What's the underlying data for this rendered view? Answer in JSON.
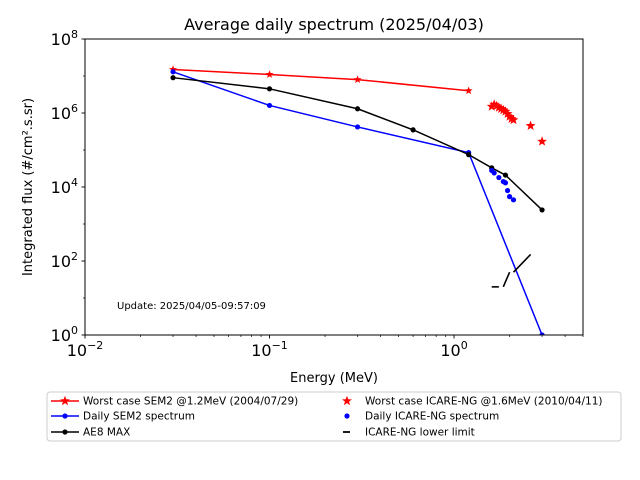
{
  "chart_data": {
    "type": "line",
    "title": "Average daily spectrum (2025/04/03)",
    "xlabel": "Energy (MeV)",
    "ylabel": "Integrated flux (#/cm².s.sr)",
    "xscale": "log",
    "yscale": "log",
    "xlim": [
      0.01,
      5
    ],
    "ylim": [
      1,
      100000000
    ],
    "grid": false,
    "legend_position": "bottom",
    "annotation": "Update: 2025/04/05-09:57:09",
    "x_tick_labels": [
      {
        "value": 0.01,
        "base": "10",
        "exp": "−2"
      },
      {
        "value": 0.1,
        "base": "10",
        "exp": "−1"
      },
      {
        "value": 1,
        "base": "10",
        "exp": "0"
      }
    ],
    "y_tick_labels": [
      {
        "value": 1,
        "base": "10",
        "exp": "0"
      },
      {
        "value": 100,
        "base": "10",
        "exp": "2"
      },
      {
        "value": 10000,
        "base": "10",
        "exp": "4"
      },
      {
        "value": 1000000,
        "base": "10",
        "exp": "6"
      },
      {
        "value": 100000000,
        "base": "10",
        "exp": "8"
      }
    ],
    "series": [
      {
        "name": "Worst case SEM2 @1.2MeV (2004/07/29)",
        "style": "line-star",
        "color": "#ff0000",
        "x": [
          0.03,
          0.1,
          0.3,
          1.2
        ],
        "y": [
          15000000,
          11000000,
          8000000,
          4000000
        ]
      },
      {
        "name": "Daily SEM2 spectrum",
        "style": "line-dot",
        "color": "#0000ff",
        "x": [
          0.03,
          0.1,
          0.3,
          1.2,
          3.0
        ],
        "y": [
          13000000,
          1600000,
          420000,
          85000,
          1
        ]
      },
      {
        "name": "AE8 MAX",
        "style": "line-dot",
        "color": "#000000",
        "x": [
          0.03,
          0.1,
          0.3,
          0.6,
          1.2,
          1.6,
          1.9,
          3.0
        ],
        "y": [
          9000000,
          4500000,
          1300000,
          350000,
          75000,
          33000,
          21000,
          2400
        ]
      },
      {
        "name": "Worst case ICARE-NG @1.6MeV (2010/04/11)",
        "style": "star",
        "color": "#ff0000",
        "x": [
          1.6,
          1.65,
          1.7,
          1.75,
          1.8,
          1.85,
          1.9,
          1.95,
          2.0,
          2.05,
          2.1,
          2.6,
          3.0
        ],
        "y": [
          1500000,
          1700000,
          1550000,
          1400000,
          1300000,
          1200000,
          1100000,
          950000,
          800000,
          700000,
          650000,
          450000,
          170000
        ]
      },
      {
        "name": "Daily ICARE-NG spectrum",
        "style": "dot",
        "color": "#0000ff",
        "x": [
          1.6,
          1.65,
          1.75,
          1.85,
          1.9,
          1.95,
          2.0,
          2.1
        ],
        "y": [
          28000,
          24000,
          18000,
          14000,
          13000,
          8000,
          5500,
          4500
        ]
      },
      {
        "name": "ICARE-NG lower limit",
        "style": "dash",
        "color": "#000000",
        "x": [
          1.6,
          1.75,
          1.85,
          2.0,
          2.1,
          2.6
        ],
        "y": [
          20,
          20,
          20,
          50,
          50,
          150
        ]
      }
    ]
  }
}
